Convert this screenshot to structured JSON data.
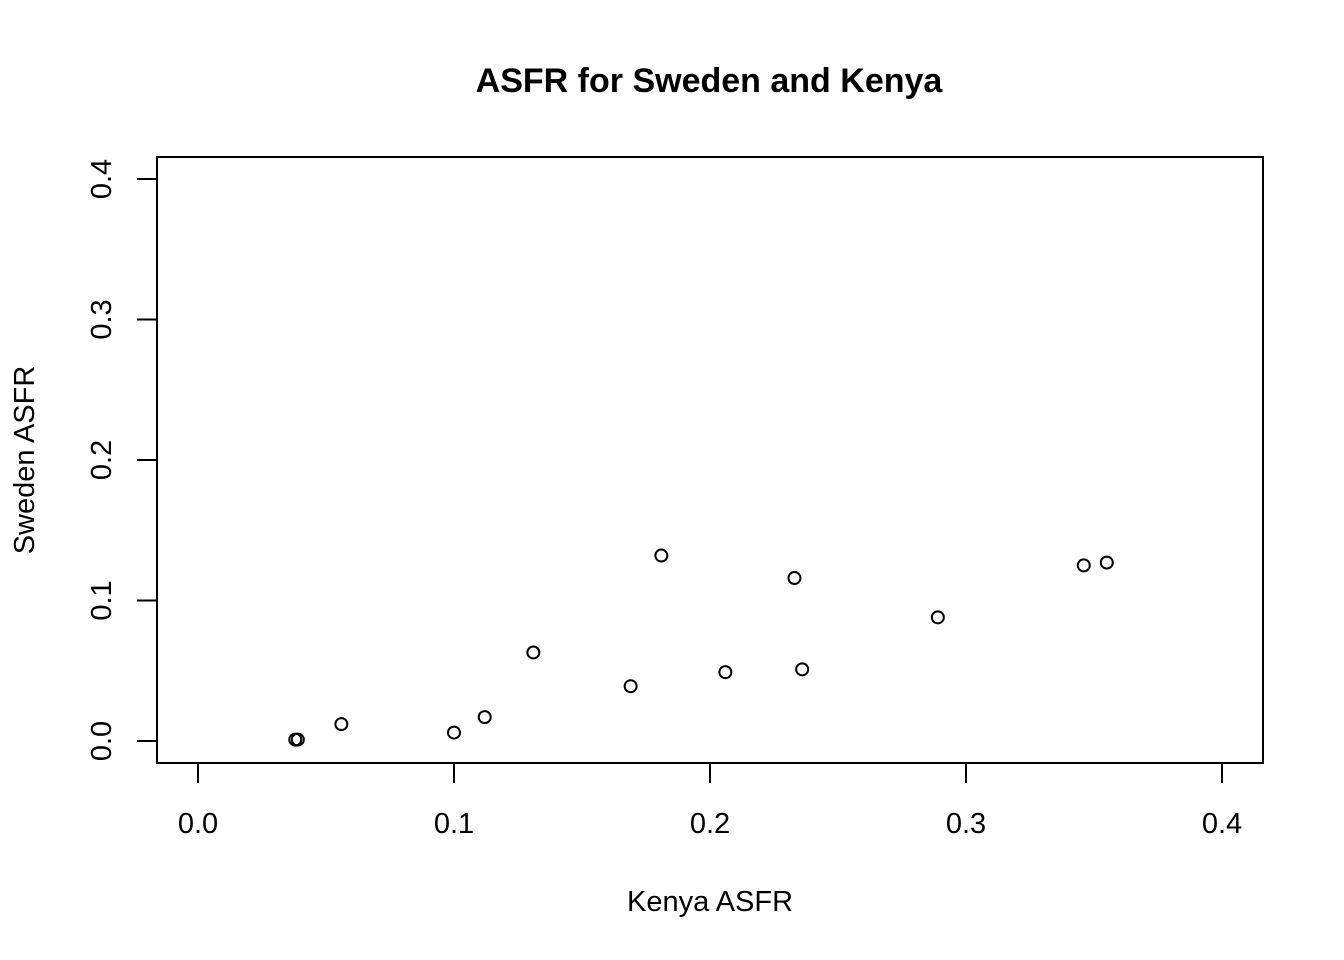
{
  "chart_data": {
    "type": "scatter",
    "title": "ASFR for Sweden and Kenya",
    "xlabel": "Kenya ASFR",
    "ylabel": "Sweden ASFR",
    "xlim": [
      0.0,
      0.4
    ],
    "ylim": [
      0.0,
      0.4
    ],
    "xticks": [
      "0.0",
      "0.1",
      "0.2",
      "0.3",
      "0.4"
    ],
    "yticks": [
      "0.0",
      "0.1",
      "0.2",
      "0.3",
      "0.4"
    ],
    "grid": false,
    "legend": "none",
    "marker": "open-circle",
    "series": [
      {
        "points": [
          {
            "x": 0.038,
            "y": 0.001
          },
          {
            "x": 0.039,
            "y": 0.001
          },
          {
            "x": 0.056,
            "y": 0.012
          },
          {
            "x": 0.1,
            "y": 0.006
          },
          {
            "x": 0.112,
            "y": 0.017
          },
          {
            "x": 0.131,
            "y": 0.063
          },
          {
            "x": 0.169,
            "y": 0.039
          },
          {
            "x": 0.181,
            "y": 0.132
          },
          {
            "x": 0.206,
            "y": 0.049
          },
          {
            "x": 0.233,
            "y": 0.116
          },
          {
            "x": 0.236,
            "y": 0.051
          },
          {
            "x": 0.289,
            "y": 0.088
          },
          {
            "x": 0.346,
            "y": 0.125
          },
          {
            "x": 0.355,
            "y": 0.127
          }
        ]
      }
    ]
  }
}
